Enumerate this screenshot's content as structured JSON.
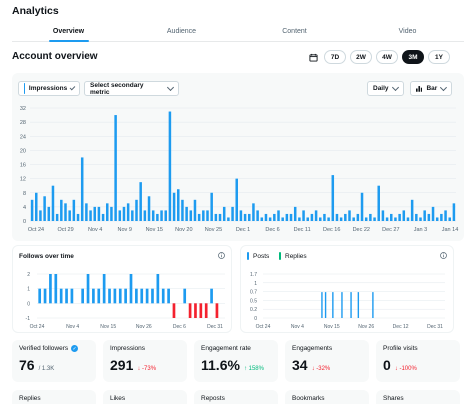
{
  "app_title": "Analytics",
  "tabs": [
    {
      "label": "Overview",
      "active": true
    },
    {
      "label": "Audience",
      "active": false
    },
    {
      "label": "Content",
      "active": false
    },
    {
      "label": "Video",
      "active": false
    }
  ],
  "section_title": "Account overview",
  "range_options": [
    "7D",
    "2W",
    "4W",
    "3M",
    "1Y"
  ],
  "range_selected": "3M",
  "controls": {
    "primary_metric": "Impressions",
    "secondary_metric": "Select secondary metric",
    "interval": "Daily",
    "chart_type": "Bar"
  },
  "colors": {
    "accent": "#1d9bf0",
    "negative": "#f4212e",
    "positive": "#00ba7c"
  },
  "impressions_chart": {
    "y_ticks": [
      "32",
      "28",
      "24",
      "20",
      "16",
      "12",
      "8",
      "4",
      "0"
    ],
    "x_ticks": [
      "Oct 24",
      "Oct 29",
      "Nov 4",
      "Nov 9",
      "Nov 15",
      "Nov 20",
      "Nov 25",
      "Dec 1",
      "Dec 6",
      "Dec 11",
      "Dec 16",
      "Dec 22",
      "Dec 27",
      "Jan 3",
      "Jan 14"
    ]
  },
  "follows_chart": {
    "title": "Follows over time",
    "y_ticks": [
      "2",
      "1",
      "0",
      "-1"
    ],
    "x_ticks": [
      "Oct 24",
      "Nov 4",
      "Nov 15",
      "Nov 26",
      "Dec 6",
      "Dec 31"
    ]
  },
  "posts_chart": {
    "legend": [
      "Posts",
      "Replies"
    ],
    "y_ticks": [
      "1.7",
      "1",
      "0.7",
      "0.5",
      "0.2",
      "0"
    ],
    "x_ticks": [
      "Oct 24",
      "Nov 4",
      "Nov 15",
      "Nov 26",
      "Dec 12",
      "Dec 31"
    ]
  },
  "chart_data": [
    {
      "type": "bar",
      "series": [
        {
          "name": "Impressions",
          "values": [
            6,
            8,
            3,
            7,
            4,
            10,
            2,
            6,
            5,
            3,
            6,
            2,
            18,
            5,
            3,
            4,
            4,
            2,
            5,
            4,
            30,
            3,
            4,
            5,
            3,
            6,
            11,
            3,
            7,
            3,
            2,
            3,
            3,
            31,
            8,
            9,
            6,
            4,
            3,
            6,
            2,
            3,
            3,
            8,
            2,
            2,
            4,
            1,
            4,
            12,
            3,
            2,
            2,
            5,
            3,
            1,
            2,
            1,
            2,
            3,
            1,
            2,
            2,
            4,
            1,
            3,
            1,
            2,
            3,
            1,
            2,
            1,
            13,
            2,
            1,
            2,
            3,
            1,
            2,
            8,
            1,
            2,
            1,
            10,
            3,
            1,
            2,
            1,
            2,
            3,
            1,
            6,
            2,
            1,
            3,
            2,
            4,
            1,
            2,
            3,
            1,
            5
          ]
        }
      ],
      "ylim": [
        0,
        32
      ]
    },
    {
      "type": "bar",
      "series": [
        {
          "name": "Follows",
          "values": [
            1,
            1,
            2,
            2,
            1,
            1,
            1,
            0,
            1,
            2,
            1,
            1,
            2,
            1,
            1,
            1,
            1,
            2,
            1,
            1,
            1,
            1,
            2,
            1,
            1,
            -1,
            0,
            1,
            -1,
            -1,
            -1,
            -1,
            1,
            -1,
            0
          ]
        }
      ],
      "ylim": [
        -1,
        2
      ]
    },
    {
      "type": "bar",
      "series": [
        {
          "name": "Posts",
          "values": [
            0,
            1,
            1,
            1,
            1,
            1,
            1,
            1
          ]
        }
      ],
      "ylim": [
        0,
        1.7
      ]
    }
  ],
  "metric_cards": [
    {
      "label": "Verified followers",
      "value": "76",
      "sub": "/ 1.3K",
      "delta": ""
    },
    {
      "label": "Impressions",
      "value": "291",
      "sub": "",
      "delta": "↓ -73%"
    },
    {
      "label": "Engagement rate",
      "value": "11.6%",
      "sub": "",
      "delta": "↑ 158%"
    },
    {
      "label": "Engagements",
      "value": "34",
      "sub": "",
      "delta": "↓ -32%"
    },
    {
      "label": "Profile visits",
      "value": "0",
      "sub": "",
      "delta": "↓ -100%"
    }
  ],
  "metric_cards_row2": [
    "Replies",
    "Likes",
    "Reposts",
    "Bookmarks",
    "Shares"
  ]
}
